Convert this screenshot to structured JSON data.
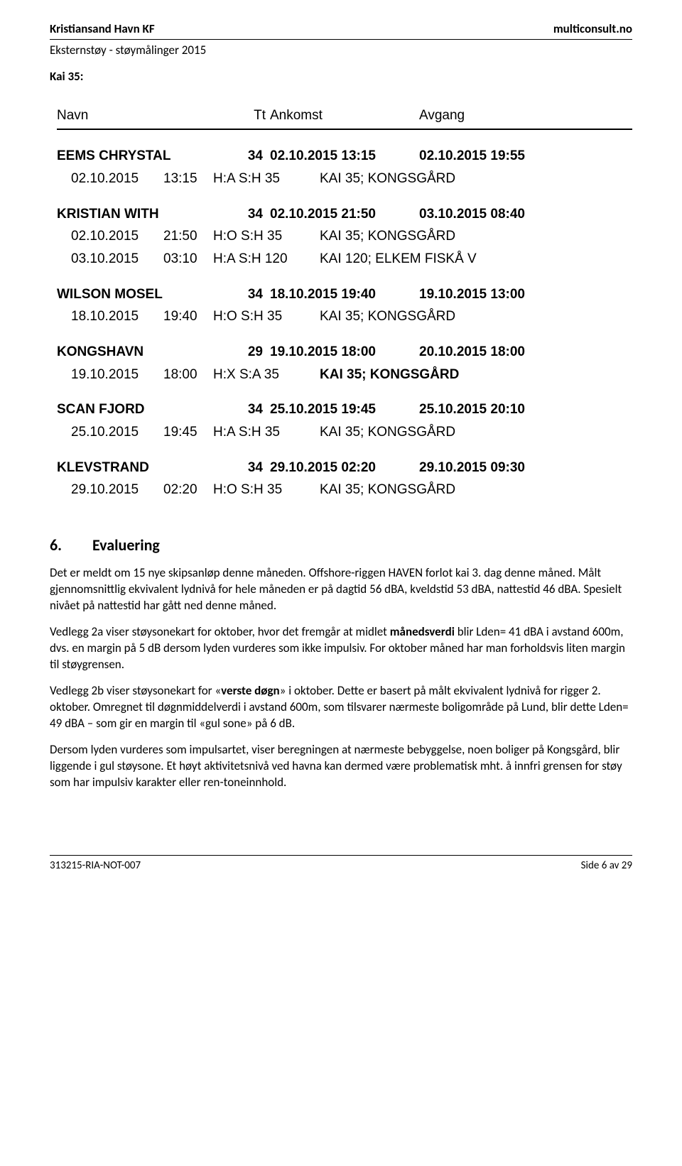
{
  "header": {
    "left": "Kristiansand Havn KF",
    "right": "multiconsult.no",
    "sub": "Eksternstøy - støymålinger 2015",
    "kai": "Kai 35:"
  },
  "table": {
    "head": {
      "navn": "Navn",
      "tt": "Tt",
      "ankomst": "Ankomst",
      "avgang": "Avgang"
    },
    "entries": [
      {
        "ship": "EEMS CHRYSTAL",
        "tt": "34",
        "arr": "02.10.2015 13:15",
        "dep": "02.10.2015 19:55",
        "subs": [
          {
            "date": "02.10.2015",
            "time": "13:15",
            "codes": "H:A  S:H  35",
            "kai": "KAI 35; KONGSGÅRD",
            "bold": false
          }
        ]
      },
      {
        "ship": "KRISTIAN WITH",
        "tt": "34",
        "arr": "02.10.2015 21:50",
        "dep": "03.10.2015 08:40",
        "subs": [
          {
            "date": "02.10.2015",
            "time": "21:50",
            "codes": "H:O  S:H  35",
            "kai": "KAI 35; KONGSGÅRD",
            "bold": false
          },
          {
            "date": "03.10.2015",
            "time": "03:10",
            "codes": "H:A  S:H  120",
            "kai": "KAI 120; ELKEM FISKÅ V",
            "bold": false
          }
        ]
      },
      {
        "ship": "WILSON MOSEL",
        "tt": "34",
        "arr": "18.10.2015 19:40",
        "dep": "19.10.2015 13:00",
        "subs": [
          {
            "date": "18.10.2015",
            "time": "19:40",
            "codes": "H:O  S:H  35",
            "kai": "KAI 35; KONGSGÅRD",
            "bold": false
          }
        ]
      },
      {
        "ship": "KONGSHAVN",
        "tt": "29",
        "arr": "19.10.2015 18:00",
        "dep": "20.10.2015 18:00",
        "subs": [
          {
            "date": "19.10.2015",
            "time": "18:00",
            "codes": "H:X  S:A  35",
            "kai": "KAI 35; KONGSGÅRD",
            "bold": true
          }
        ]
      },
      {
        "ship": "SCAN FJORD",
        "tt": "34",
        "arr": "25.10.2015 19:45",
        "dep": "25.10.2015 20:10",
        "subs": [
          {
            "date": "25.10.2015",
            "time": "19:45",
            "codes": "H:A  S:H  35",
            "kai": "KAI 35; KONGSGÅRD",
            "bold": false
          }
        ]
      },
      {
        "ship": "KLEVSTRAND",
        "tt": "34",
        "arr": "29.10.2015 02:20",
        "dep": "29.10.2015 09:30",
        "subs": [
          {
            "date": "29.10.2015",
            "time": "02:20",
            "codes": "H:O  S:H  35",
            "kai": "KAI 35; KONGSGÅRD",
            "bold": false
          }
        ]
      }
    ]
  },
  "eval": {
    "num": "6.",
    "title": "Evaluering",
    "p1a": "Det er meldt om 15 nye skipsanløp denne måneden. Offshore-riggen HAVEN forlot kai 3. dag denne måned. Målt gjennomsnittlig ekvivalent lydnivå for hele måneden er på dagtid 56 dBA, kveldstid 53 dBA, nattestid 46 dBA. Spesielt nivået på nattestid har gått ned denne måned.",
    "p2a": "Vedlegg 2a viser støysonekart for oktober, hvor det fremgår at midlet ",
    "p2bold": "månedsverdi",
    "p2b": " blir Lden= 41 dBA i avstand 600m, dvs. en margin på 5 dB dersom lyden vurderes som ikke impulsiv. For oktober måned har man forholdsvis liten margin til støygrensen.",
    "p3a": "Vedlegg 2b viser støysonekart for «",
    "p3bold": "verste døgn",
    "p3b": "» i oktober. Dette er basert på målt ekvivalent lydnivå for rigger 2. oktober. Omregnet til døgnmiddelverdi i avstand 600m, som tilsvarer nærmeste boligområde på Lund, blir dette Lden= 49 dBA – som gir en margin til «gul sone» på 6 dB.",
    "p4": "Dersom lyden vurderes som impulsartet, viser beregningen at nærmeste bebyggelse, noen boliger på Kongsgård, blir liggende i gul støysone.  Et høyt aktivitetsnivå ved havna kan dermed være problematisk mht. å innfri grensen for støy som har impulsiv karakter eller ren-toneinnhold."
  },
  "footer": {
    "left": "313215-RIA-NOT-007",
    "right": "Side 6 av 29"
  }
}
